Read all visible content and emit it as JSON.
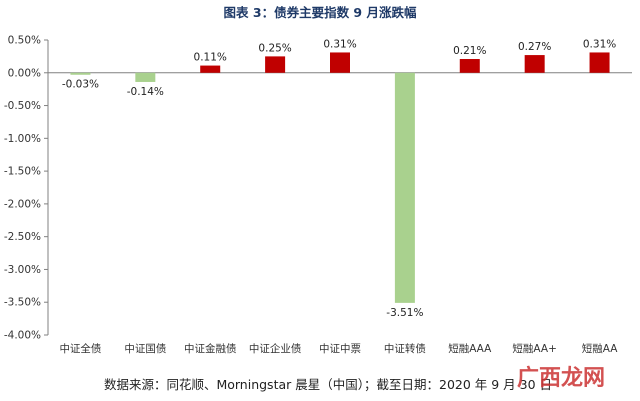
{
  "chart_data": {
    "type": "bar",
    "title": "图表 3：债券主要指数 9 月涨跌幅",
    "categories": [
      "中证全债",
      "中证国债",
      "中证金融债",
      "中证企业债",
      "中证中票",
      "中证转债",
      "短融AAA",
      "短融AA+",
      "短融AA"
    ],
    "values": [
      -0.03,
      -0.14,
      0.11,
      0.25,
      0.31,
      -3.51,
      0.21,
      0.27,
      0.31
    ],
    "data_labels": [
      "-0.03%",
      "-0.14%",
      "0.11%",
      "0.25%",
      "0.31%",
      "-3.51%",
      "0.21%",
      "0.27%",
      "0.31%"
    ],
    "y_ticks": [
      "0.50%",
      "0.00%",
      "-0.50%",
      "-1.00%",
      "-1.50%",
      "-2.00%",
      "-2.50%",
      "-3.00%",
      "-3.50%",
      "-4.00%"
    ],
    "ylim": [
      -4.0,
      0.5
    ],
    "xlabel": "",
    "ylabel": "",
    "grid": false,
    "colors": {
      "positive": "#c00000",
      "negative": "#a9d18e",
      "axis": "#808080"
    }
  },
  "source_note": "数据来源：同花顺、Morningstar 晨星（中国）；截至日期：2020 年 9 月 30 日",
  "watermark": "广西龙网"
}
